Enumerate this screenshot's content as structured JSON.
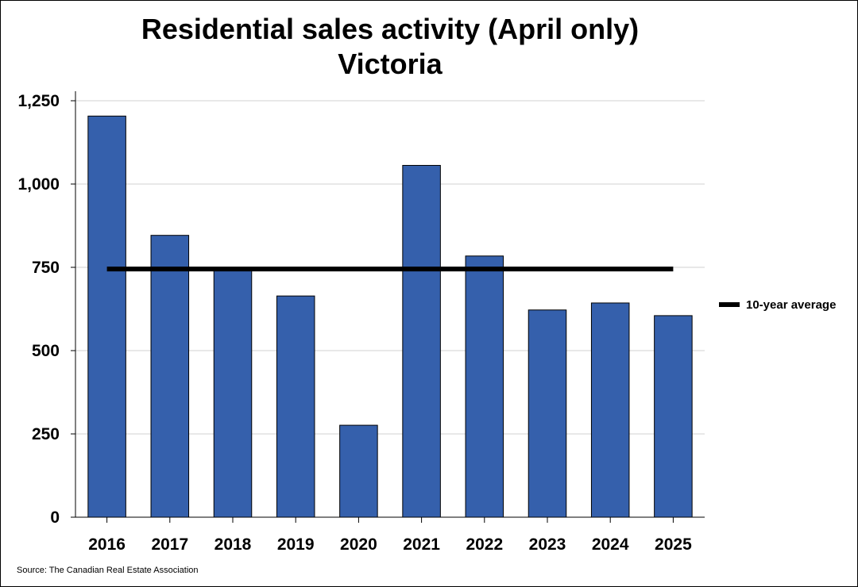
{
  "chart_data": {
    "type": "bar",
    "title": "Residential sales activity (April only)",
    "subtitle": "Victoria",
    "categories": [
      "2016",
      "2017",
      "2018",
      "2019",
      "2020",
      "2021",
      "2022",
      "2023",
      "2024",
      "2025"
    ],
    "series": [
      {
        "values": [
          1204,
          846,
          745,
          664,
          276,
          1056,
          784,
          622,
          643,
          605
        ]
      }
    ],
    "reference_lines": [
      {
        "name": "10-year average",
        "value": 745
      }
    ],
    "ylim": [
      0,
      1250
    ],
    "yticks": [
      0,
      250,
      500,
      750,
      1000,
      1250
    ],
    "ytick_labels": [
      "0",
      "250",
      "500",
      "750",
      "1,000",
      "1,250"
    ],
    "xlabel": "",
    "ylabel": "",
    "grid": true,
    "legend_position": "right",
    "bar_color": "#3560AC",
    "average_line_color": "#000000"
  },
  "source": "Source: The Canadian Real Estate Association"
}
